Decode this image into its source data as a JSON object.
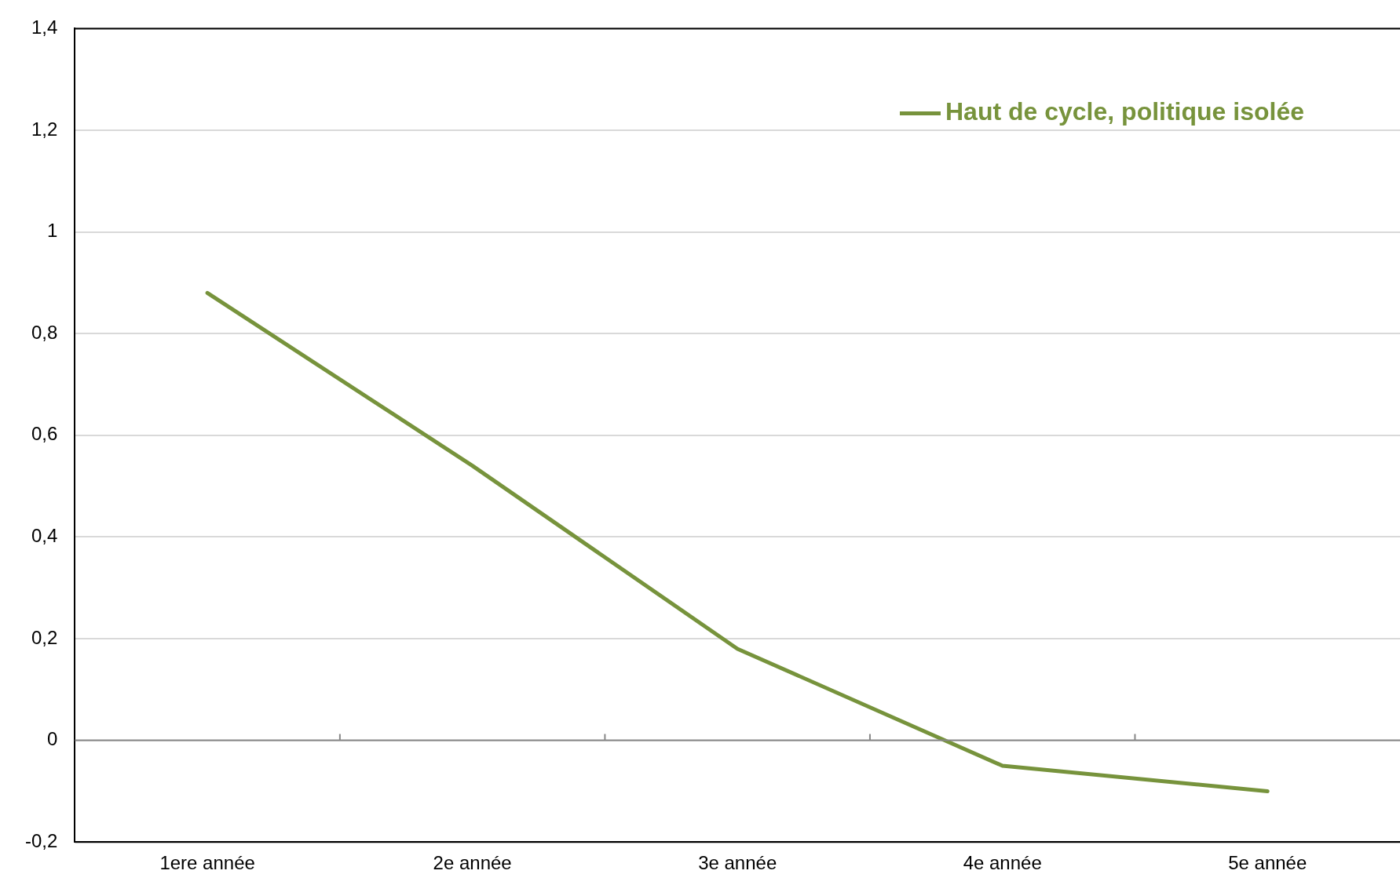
{
  "chart_data": {
    "type": "line",
    "categories": [
      "1ere année",
      "2e année",
      "3e année",
      "4e année",
      "5e année"
    ],
    "series": [
      {
        "name": "Haut de cycle, politique isolée",
        "color": "#77933c",
        "values": [
          0.88,
          0.54,
          0.18,
          -0.05,
          -0.1
        ]
      }
    ],
    "ylim": [
      -0.2,
      1.4
    ],
    "yticks": [
      {
        "value": -0.2,
        "label": "-0,2"
      },
      0,
      {
        "value": 0.2,
        "label": "0,2"
      },
      {
        "value": 0.4,
        "label": "0,4"
      },
      {
        "value": 0.6,
        "label": "0,6"
      },
      {
        "value": 0.8,
        "label": "0,8"
      },
      1,
      {
        "value": 1.2,
        "label": "1,2"
      },
      {
        "value": 1.4,
        "label": "1,4"
      }
    ],
    "grid": "y",
    "legend": "top right",
    "marker": "none",
    "line_style": "solid"
  }
}
